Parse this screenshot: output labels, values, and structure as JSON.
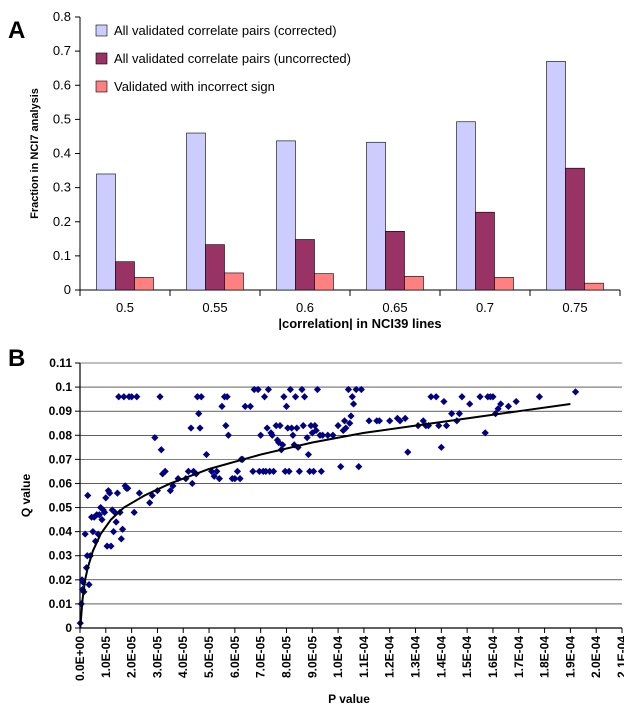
{
  "chart_data": [
    {
      "panel": "A",
      "type": "bar",
      "categories": [
        "0.5",
        "0.55",
        "0.6",
        "0.65",
        "0.7",
        "0.75"
      ],
      "series": [
        {
          "name": "All validated correlate pairs (corrected)",
          "color": "#ccccff",
          "values": [
            0.34,
            0.46,
            0.437,
            0.433,
            0.493,
            0.67
          ]
        },
        {
          "name": "All validated correlate pairs (uncorrected)",
          "color": "#993366",
          "values": [
            0.083,
            0.133,
            0.148,
            0.172,
            0.228,
            0.357
          ]
        },
        {
          "name": "Validated with incorrect sign",
          "color": "#ff8080",
          "values": [
            0.037,
            0.05,
            0.048,
            0.04,
            0.037,
            0.02
          ]
        }
      ],
      "xlabel": "|correlation| in NCI39 lines",
      "ylabel": "Fraction in NCI7 analysis",
      "ylim": [
        0,
        0.8
      ],
      "yticks": [
        "0",
        "0.1",
        "0.2",
        "0.3",
        "0.4",
        "0.5",
        "0.6",
        "0.7",
        "0.8"
      ],
      "grid": false,
      "legend_placement": "top-left"
    },
    {
      "panel": "B",
      "type": "scatter",
      "xlabel": "P value",
      "ylabel": "Q value",
      "xlim": [
        0,
        0.00021
      ],
      "ylim": [
        0,
        0.11
      ],
      "xticks": [
        "0.0E+00",
        "1.0E-05",
        "2.0E-05",
        "3.0E-05",
        "4.0E-05",
        "5.0E-05",
        "6.0E-05",
        "7.0E-05",
        "8.0E-05",
        "9.0E-05",
        "1.0E-04",
        "1.1E-04",
        "1.2E-04",
        "1.3E-04",
        "1.4E-04",
        "1.5E-04",
        "1.6E-04",
        "1.7E-04",
        "1.8E-04",
        "1.9E-04",
        "2.0E-04",
        "2.1E-04"
      ],
      "yticks": [
        "0",
        "0.01",
        "0.02",
        "0.03",
        "0.04",
        "0.05",
        "0.06",
        "0.07",
        "0.08",
        "0.09",
        "0.1",
        "0.11"
      ],
      "grid": "horizontal",
      "marker_color": "#000080",
      "points": [
        [
          1e-07,
          0.002
        ],
        [
          5e-07,
          0.01
        ],
        [
          8e-07,
          0.02
        ],
        [
          1e-06,
          0.016
        ],
        [
          1.2e-06,
          0.019
        ],
        [
          1.5e-06,
          0.015
        ],
        [
          2e-06,
          0.039
        ],
        [
          2.5e-06,
          0.025
        ],
        [
          2.8e-06,
          0.03
        ],
        [
          3e-06,
          0.055
        ],
        [
          3.5e-06,
          0.018
        ],
        [
          4e-06,
          0.03
        ],
        [
          4.5e-06,
          0.046
        ],
        [
          5e-06,
          0.04
        ],
        [
          5.5e-06,
          0.046
        ],
        [
          6e-06,
          0.036
        ],
        [
          6.5e-06,
          0.047
        ],
        [
          7e-06,
          0.039
        ],
        [
          7.5e-06,
          0.047
        ],
        [
          8e-06,
          0.05
        ],
        [
          8.5e-06,
          0.045
        ],
        [
          9e-06,
          0.049
        ],
        [
          9.5e-06,
          0.048
        ],
        [
          1e-05,
          0.054
        ],
        [
          1.05e-05,
          0.034
        ],
        [
          1.1e-05,
          0.057
        ],
        [
          1.15e-05,
          0.056
        ],
        [
          1.2e-05,
          0.034
        ],
        [
          1.25e-05,
          0.049
        ],
        [
          1.3e-05,
          0.04
        ],
        [
          1.35e-05,
          0.048
        ],
        [
          1.4e-05,
          0.044
        ],
        [
          1.45e-05,
          0.056
        ],
        [
          1.5e-05,
          0.096
        ],
        [
          1.55e-05,
          0.048
        ],
        [
          1.6e-05,
          0.037
        ],
        [
          1.65e-05,
          0.041
        ],
        [
          1.7e-05,
          0.096
        ],
        [
          1.75e-05,
          0.059
        ],
        [
          1.8e-05,
          0.058
        ],
        [
          1.85e-05,
          0.058
        ],
        [
          1.9e-05,
          0.096
        ],
        [
          2e-05,
          0.096
        ],
        [
          2.1e-05,
          0.048
        ],
        [
          2.2e-05,
          0.096
        ],
        [
          2.3e-05,
          0.056
        ],
        [
          2.7e-05,
          0.052
        ],
        [
          2.8e-05,
          0.055
        ],
        [
          2.9e-05,
          0.079
        ],
        [
          3e-05,
          0.057
        ],
        [
          3.1e-05,
          0.096
        ],
        [
          3.15e-05,
          0.074
        ],
        [
          3.2e-05,
          0.064
        ],
        [
          3.3e-05,
          0.065
        ],
        [
          3.5e-05,
          0.057
        ],
        [
          3.6e-05,
          0.059
        ],
        [
          3.8e-05,
          0.062
        ],
        [
          4.1e-05,
          0.062
        ],
        [
          4.2e-05,
          0.065
        ],
        [
          4.3e-05,
          0.083
        ],
        [
          4.35e-05,
          0.06
        ],
        [
          4.4e-05,
          0.065
        ],
        [
          4.5e-05,
          0.064
        ],
        [
          4.55e-05,
          0.096
        ],
        [
          4.6e-05,
          0.089
        ],
        [
          4.65e-05,
          0.083
        ],
        [
          4.7e-05,
          0.096
        ],
        [
          4.9e-05,
          0.072
        ],
        [
          5.1e-05,
          0.065
        ],
        [
          5.2e-05,
          0.063
        ],
        [
          5.3e-05,
          0.065
        ],
        [
          5.4e-05,
          0.062
        ],
        [
          5.5e-05,
          0.092
        ],
        [
          5.6e-05,
          0.096
        ],
        [
          5.65e-05,
          0.084
        ],
        [
          5.7e-05,
          0.096
        ],
        [
          5.75e-05,
          0.08
        ],
        [
          5.9e-05,
          0.062
        ],
        [
          6e-05,
          0.062
        ],
        [
          6.1e-05,
          0.065
        ],
        [
          6.2e-05,
          0.062
        ],
        [
          6.25e-05,
          0.07
        ],
        [
          6.3e-05,
          0.07
        ],
        [
          6.4e-05,
          0.092
        ],
        [
          6.6e-05,
          0.092
        ],
        [
          6.7e-05,
          0.065
        ],
        [
          6.75e-05,
          0.099
        ],
        [
          6.9e-05,
          0.099
        ],
        [
          6.95e-05,
          0.065
        ],
        [
          7e-05,
          0.08
        ],
        [
          7.1e-05,
          0.065
        ],
        [
          7.15e-05,
          0.096
        ],
        [
          7.2e-05,
          0.065
        ],
        [
          7.25e-05,
          0.083
        ],
        [
          7.3e-05,
          0.099
        ],
        [
          7.35e-05,
          0.065
        ],
        [
          7.4e-05,
          0.081
        ],
        [
          7.45e-05,
          0.08
        ],
        [
          7.5e-05,
          0.065
        ],
        [
          7.6e-05,
          0.084
        ],
        [
          7.65e-05,
          0.078
        ],
        [
          7.7e-05,
          0.077
        ],
        [
          7.75e-05,
          0.084
        ],
        [
          7.8e-05,
          0.074
        ],
        [
          7.85e-05,
          0.076
        ],
        [
          7.9e-05,
          0.096
        ],
        [
          7.95e-05,
          0.065
        ],
        [
          8e-05,
          0.092
        ],
        [
          8.05e-05,
          0.083
        ],
        [
          8.1e-05,
          0.065
        ],
        [
          8.15e-05,
          0.099
        ],
        [
          8.2e-05,
          0.083
        ],
        [
          8.25e-05,
          0.08
        ],
        [
          8.3e-05,
          0.076
        ],
        [
          8.35e-05,
          0.096
        ],
        [
          8.4e-05,
          0.083
        ],
        [
          8.45e-05,
          0.075
        ],
        [
          8.5e-05,
          0.065
        ],
        [
          8.6e-05,
          0.099
        ],
        [
          8.65e-05,
          0.084
        ],
        [
          8.7e-05,
          0.096
        ],
        [
          8.8e-05,
          0.079
        ],
        [
          8.85e-05,
          0.072
        ],
        [
          8.9e-05,
          0.065
        ],
        [
          8.95e-05,
          0.084
        ],
        [
          9e-05,
          0.081
        ],
        [
          9.05e-05,
          0.065
        ],
        [
          9.1e-05,
          0.084
        ],
        [
          9.15e-05,
          0.082
        ],
        [
          9.2e-05,
          0.099
        ],
        [
          9.3e-05,
          0.08
        ],
        [
          9.35e-05,
          0.065
        ],
        [
          9.4e-05,
          0.08
        ],
        [
          9.6e-05,
          0.08
        ],
        [
          9.8e-05,
          0.08
        ],
        [
          0.0001,
          0.084
        ],
        [
          0.000101,
          0.067
        ],
        [
          0.000102,
          0.082
        ],
        [
          0.0001025,
          0.086
        ],
        [
          0.000103,
          0.083
        ],
        [
          0.000104,
          0.099
        ],
        [
          0.0001045,
          0.085
        ],
        [
          0.000105,
          0.088
        ],
        [
          0.0001055,
          0.096
        ],
        [
          0.000106,
          0.093
        ],
        [
          0.000107,
          0.099
        ],
        [
          0.000108,
          0.067
        ],
        [
          0.000109,
          0.099
        ],
        [
          0.000112,
          0.086
        ],
        [
          0.000115,
          0.086
        ],
        [
          0.000116,
          0.086
        ],
        [
          0.00012,
          0.086
        ],
        [
          0.000123,
          0.087
        ],
        [
          0.000124,
          0.086
        ],
        [
          0.000126,
          0.087
        ],
        [
          0.000127,
          0.073
        ],
        [
          0.000131,
          0.084
        ],
        [
          0.000133,
          0.086
        ],
        [
          0.000134,
          0.084
        ],
        [
          0.000135,
          0.084
        ],
        [
          0.000136,
          0.096
        ],
        [
          0.000138,
          0.096
        ],
        [
          0.000139,
          0.084
        ],
        [
          0.00014,
          0.075
        ],
        [
          0.000141,
          0.094
        ],
        [
          0.000142,
          0.084
        ],
        [
          0.000144,
          0.089
        ],
        [
          0.000146,
          0.086
        ],
        [
          0.000147,
          0.089
        ],
        [
          0.000148,
          0.096
        ],
        [
          0.000151,
          0.093
        ],
        [
          0.000155,
          0.096
        ],
        [
          0.000157,
          0.081
        ],
        [
          0.000158,
          0.096
        ],
        [
          0.000159,
          0.096
        ],
        [
          0.00016,
          0.096
        ],
        [
          0.000161,
          0.089
        ],
        [
          0.000162,
          0.091
        ],
        [
          0.000163,
          0.093
        ],
        [
          0.000166,
          0.092
        ],
        [
          0.000169,
          0.094
        ],
        [
          0.000178,
          0.096
        ],
        [
          0.000192,
          0.098
        ]
      ],
      "trend_curve": [
        [
          1e-07,
          0.0
        ],
        [
          1e-06,
          0.012
        ],
        [
          2e-06,
          0.02
        ],
        [
          3e-06,
          0.025
        ],
        [
          5e-06,
          0.032
        ],
        [
          8e-06,
          0.039
        ],
        [
          1.2e-05,
          0.045
        ],
        [
          1.7e-05,
          0.05
        ],
        [
          2.5e-05,
          0.055
        ],
        [
          3.5e-05,
          0.06
        ],
        [
          5e-05,
          0.066
        ],
        [
          7e-05,
          0.072
        ],
        [
          9e-05,
          0.077
        ],
        [
          0.00011,
          0.081
        ],
        [
          0.00013,
          0.084
        ],
        [
          0.00015,
          0.087
        ],
        [
          0.00017,
          0.09
        ],
        [
          0.00019,
          0.093
        ]
      ]
    }
  ]
}
